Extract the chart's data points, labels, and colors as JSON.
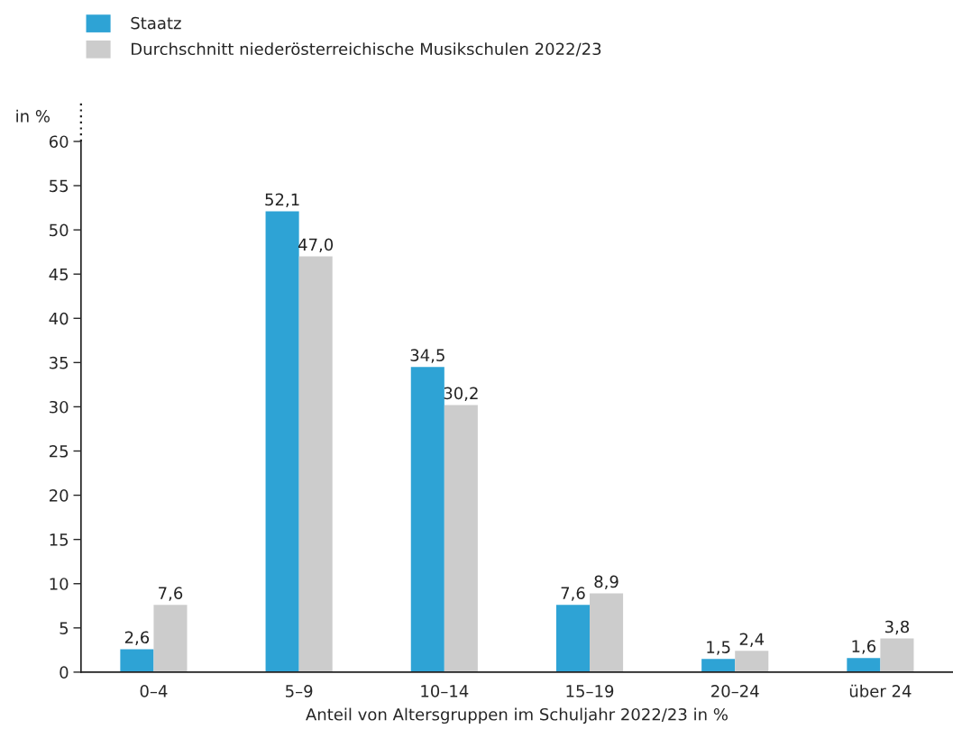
{
  "chart_data": {
    "type": "bar",
    "categories": [
      "0–4",
      "5–9",
      "10–14",
      "15–19",
      "20–24",
      "über 24"
    ],
    "series": [
      {
        "name": "Staatz",
        "color": "#2ea3d5",
        "values": [
          2.6,
          52.1,
          34.5,
          7.6,
          1.5,
          1.6
        ],
        "value_labels": [
          "2,6",
          "52,1",
          "34,5",
          "7,6",
          "1,5",
          "1,6"
        ]
      },
      {
        "name": "Durchschnitt niederösterreichische Musikschulen 2022/23",
        "color": "#cccccc",
        "values": [
          7.6,
          47.0,
          30.2,
          8.9,
          2.4,
          3.8
        ],
        "value_labels": [
          "7,6",
          "47,0",
          "30,2",
          "8,9",
          "2,4",
          "3,8"
        ]
      }
    ],
    "xlabel": "Anteil von Altersgruppen im Schuljahr 2022/23 in %",
    "ylabel": "in %",
    "ylim": [
      0,
      60
    ],
    "yticks": [
      0,
      5,
      10,
      15,
      20,
      25,
      30,
      35,
      40,
      45,
      50,
      55,
      60
    ],
    "grid": false,
    "legend": "top left"
  }
}
